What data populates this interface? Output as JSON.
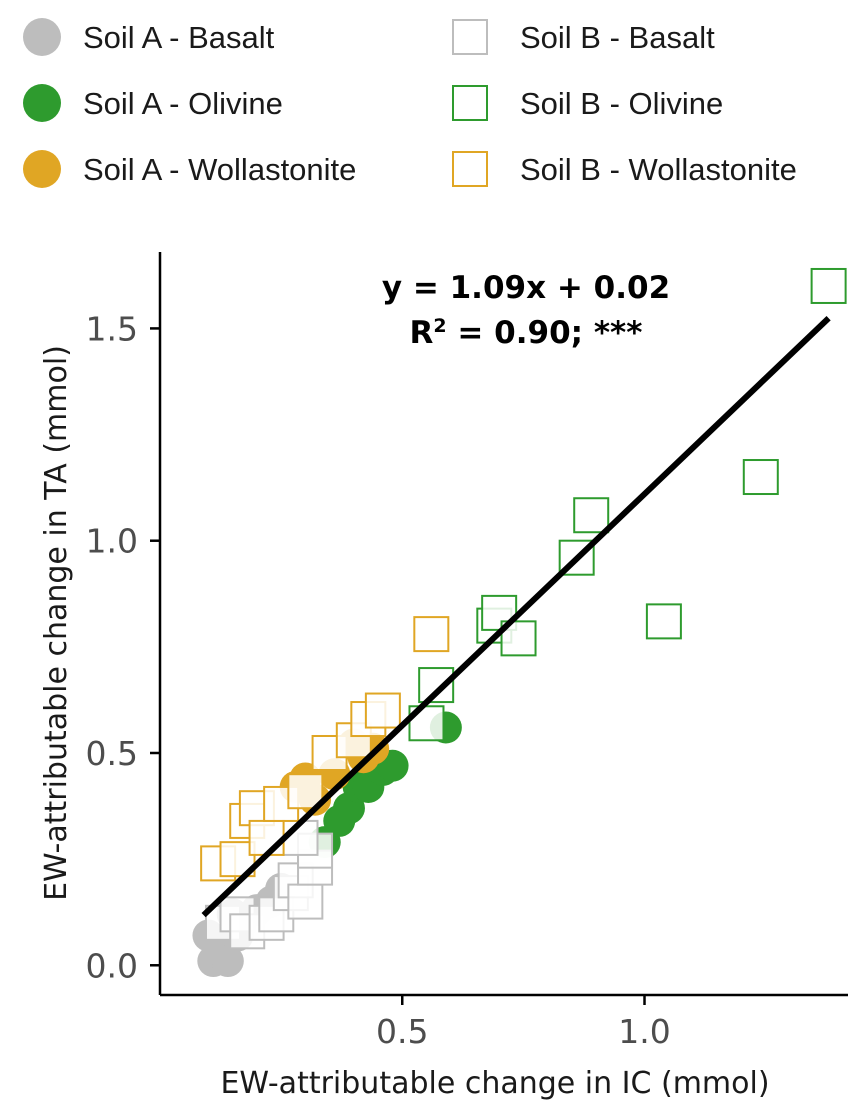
{
  "chart_data": {
    "type": "scatter",
    "xlabel": "EW-attributable change in IC (mmol)",
    "ylabel": "EW-attributable change in TA (mmol)",
    "xlim": [
      0.0,
      1.42
    ],
    "ylim": [
      -0.07,
      1.68
    ],
    "xticks": [
      {
        "value": 0.5,
        "label": "0.5"
      },
      {
        "value": 1.0,
        "label": "1.0"
      }
    ],
    "yticks": [
      {
        "value": 0.0,
        "label": "0.0"
      },
      {
        "value": 0.5,
        "label": "0.5"
      },
      {
        "value": 1.0,
        "label": "1.0"
      },
      {
        "value": 1.5,
        "label": "1.5"
      }
    ],
    "grid": false,
    "legend_position": "top",
    "colors": {
      "basalt": "#bdbdbd",
      "olivine": "#2e9b2e",
      "wollastonite": "#e0a624",
      "line": "#000000"
    },
    "legend": [
      {
        "label": "Soil A - Basalt",
        "marker": "circle",
        "color": "#bdbdbd"
      },
      {
        "label": "Soil B - Basalt",
        "marker": "square-open",
        "color": "#bdbdbd"
      },
      {
        "label": "Soil A - Olivine",
        "marker": "circle",
        "color": "#2e9b2e"
      },
      {
        "label": "Soil B - Olivine",
        "marker": "square-open",
        "color": "#2e9b2e"
      },
      {
        "label": "Soil A - Wollastonite",
        "marker": "circle",
        "color": "#e0a624"
      },
      {
        "label": "Soil B - Wollastonite",
        "marker": "square-open",
        "color": "#e0a624"
      }
    ],
    "series": [
      {
        "name": "Soil A - Basalt",
        "marker": "circle",
        "color": "#bdbdbd",
        "points": [
          [
            0.1,
            0.07
          ],
          [
            0.11,
            0.01
          ],
          [
            0.12,
            0.03
          ],
          [
            0.14,
            0.01
          ],
          [
            0.16,
            0.07
          ],
          [
            0.15,
            0.12
          ],
          [
            0.2,
            0.13
          ],
          [
            0.23,
            0.15
          ],
          [
            0.25,
            0.18
          ]
        ]
      },
      {
        "name": "Soil B - Basalt",
        "marker": "square-open",
        "color": "#bdbdbd",
        "points": [
          [
            0.13,
            0.1
          ],
          [
            0.16,
            0.12
          ],
          [
            0.18,
            0.08
          ],
          [
            0.22,
            0.1
          ],
          [
            0.24,
            0.12
          ],
          [
            0.27,
            0.17
          ],
          [
            0.28,
            0.2
          ],
          [
            0.3,
            0.15
          ],
          [
            0.32,
            0.23
          ],
          [
            0.32,
            0.27
          ],
          [
            0.29,
            0.3
          ]
        ]
      },
      {
        "name": "Soil A - Olivine",
        "marker": "circle",
        "color": "#2e9b2e",
        "points": [
          [
            0.34,
            0.29
          ],
          [
            0.37,
            0.34
          ],
          [
            0.39,
            0.37
          ],
          [
            0.41,
            0.42
          ],
          [
            0.43,
            0.42
          ],
          [
            0.46,
            0.46
          ],
          [
            0.48,
            0.47
          ],
          [
            0.59,
            0.56
          ]
        ]
      },
      {
        "name": "Soil B - Olivine",
        "marker": "square-open",
        "color": "#2e9b2e",
        "points": [
          [
            0.55,
            0.57
          ],
          [
            0.57,
            0.66
          ],
          [
            0.69,
            0.8
          ],
          [
            0.7,
            0.83
          ],
          [
            0.74,
            0.77
          ],
          [
            0.86,
            0.96
          ],
          [
            0.89,
            1.06
          ],
          [
            1.04,
            0.81
          ],
          [
            1.24,
            1.15
          ],
          [
            1.38,
            1.6
          ]
        ]
      },
      {
        "name": "Soil A - Wollastonite",
        "marker": "circle",
        "color": "#e0a624",
        "points": [
          [
            0.28,
            0.42
          ],
          [
            0.3,
            0.44
          ],
          [
            0.32,
            0.39
          ],
          [
            0.36,
            0.45
          ],
          [
            0.4,
            0.52
          ],
          [
            0.42,
            0.49
          ],
          [
            0.44,
            0.51
          ]
        ]
      },
      {
        "name": "Soil B - Wollastonite",
        "marker": "square-open",
        "color": "#e0a624",
        "points": [
          [
            0.12,
            0.24
          ],
          [
            0.16,
            0.25
          ],
          [
            0.18,
            0.34
          ],
          [
            0.2,
            0.37
          ],
          [
            0.22,
            0.3
          ],
          [
            0.25,
            0.38
          ],
          [
            0.3,
            0.41
          ],
          [
            0.35,
            0.5
          ],
          [
            0.4,
            0.53
          ],
          [
            0.43,
            0.58
          ],
          [
            0.46,
            0.6
          ],
          [
            0.56,
            0.78
          ]
        ]
      }
    ],
    "regression": {
      "slope": 1.09,
      "intercept": 0.02,
      "x_range": [
        0.09,
        1.38
      ]
    },
    "annotations": {
      "equation": "y = 1.09x + 0.02",
      "r2_prefix": "R",
      "r2_sup": "2",
      "r2_rest": " = 0.90; ***"
    }
  }
}
